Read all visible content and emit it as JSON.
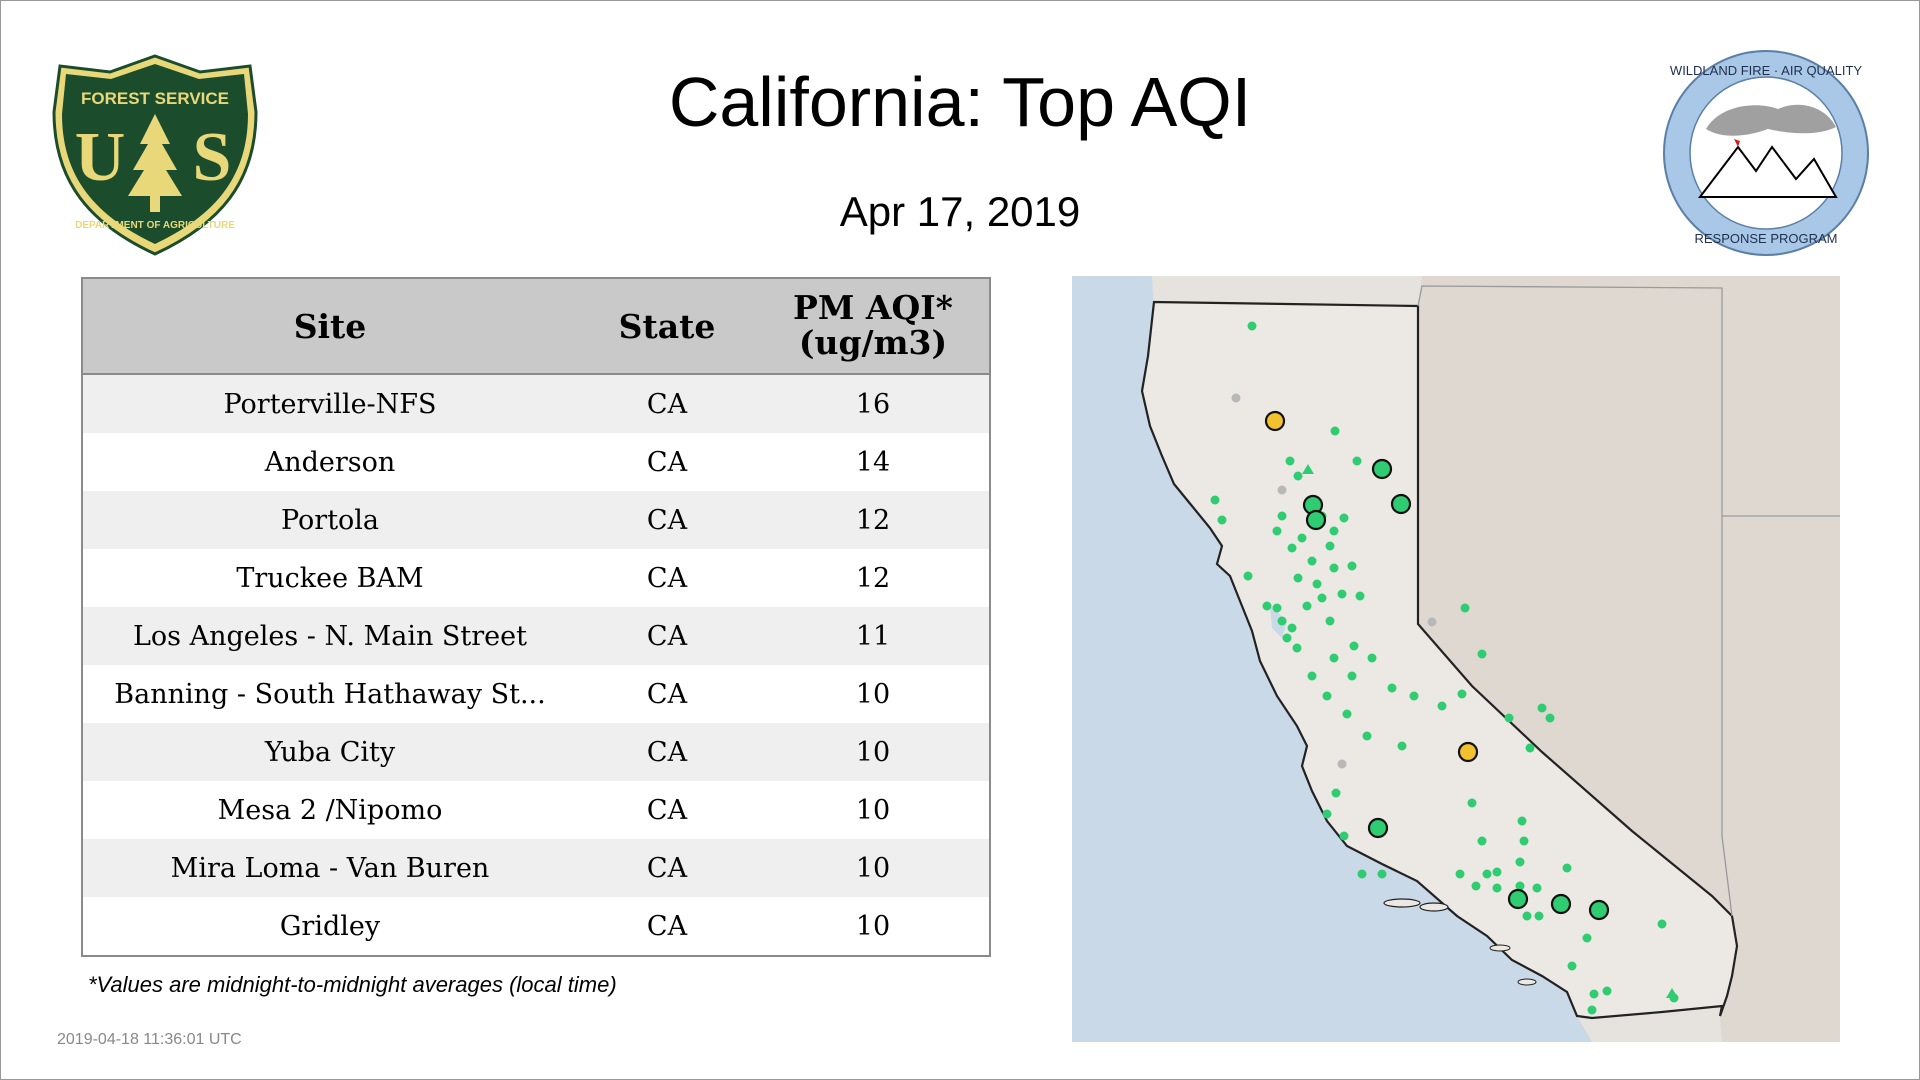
{
  "header": {
    "title": "California: Top AQI",
    "date": "Apr 17, 2019"
  },
  "logos": {
    "left": {
      "name": "forest-service-shield",
      "text_top": "FOREST SERVICE",
      "text_letters": "U S",
      "text_bottom": "DEPARTMENT OF AGRICULTURE",
      "colors": {
        "green": "#1b4d2c",
        "gold": "#e8d87a"
      }
    },
    "right": {
      "name": "wildland-fire-air-quality-response-program",
      "text_top": "WILDLAND FIRE · AIR QUALITY",
      "text_bottom": "RESPONSE PROGRAM",
      "colors": {
        "ring": "#a9c7e6"
      }
    }
  },
  "table": {
    "headers": {
      "site": "Site",
      "state": "State",
      "aqi_line1": "PM AQI*",
      "aqi_line2": "(ug/m3)"
    },
    "rows": [
      {
        "site": "Porterville-NFS",
        "state": "CA",
        "aqi": "16"
      },
      {
        "site": "Anderson",
        "state": "CA",
        "aqi": "14"
      },
      {
        "site": "Portola",
        "state": "CA",
        "aqi": "12"
      },
      {
        "site": "Truckee BAM",
        "state": "CA",
        "aqi": "12"
      },
      {
        "site": "Los Angeles - N. Main Street",
        "state": "CA",
        "aqi": "11"
      },
      {
        "site": "Banning - South Hathaway St...",
        "state": "CA",
        "aqi": "10"
      },
      {
        "site": "Yuba City",
        "state": "CA",
        "aqi": "10"
      },
      {
        "site": "Mesa 2 /Nipomo",
        "state": "CA",
        "aqi": "10"
      },
      {
        "site": "Mira Loma - Van Buren",
        "state": "CA",
        "aqi": "10"
      },
      {
        "site": "Gridley",
        "state": "CA",
        "aqi": "10"
      }
    ]
  },
  "footnote": "*Values are midnight-to-midnight averages (local time)",
  "timestamp": "2019-04-18 11:36:01 UTC",
  "map": {
    "colors": {
      "ocean": "#c9d9e8",
      "land": "#e8e4e0",
      "state_border": "#222222",
      "good": "#2fcc71",
      "moderate": "#f2c12e",
      "no_data": "#b8b8b8"
    }
  }
}
